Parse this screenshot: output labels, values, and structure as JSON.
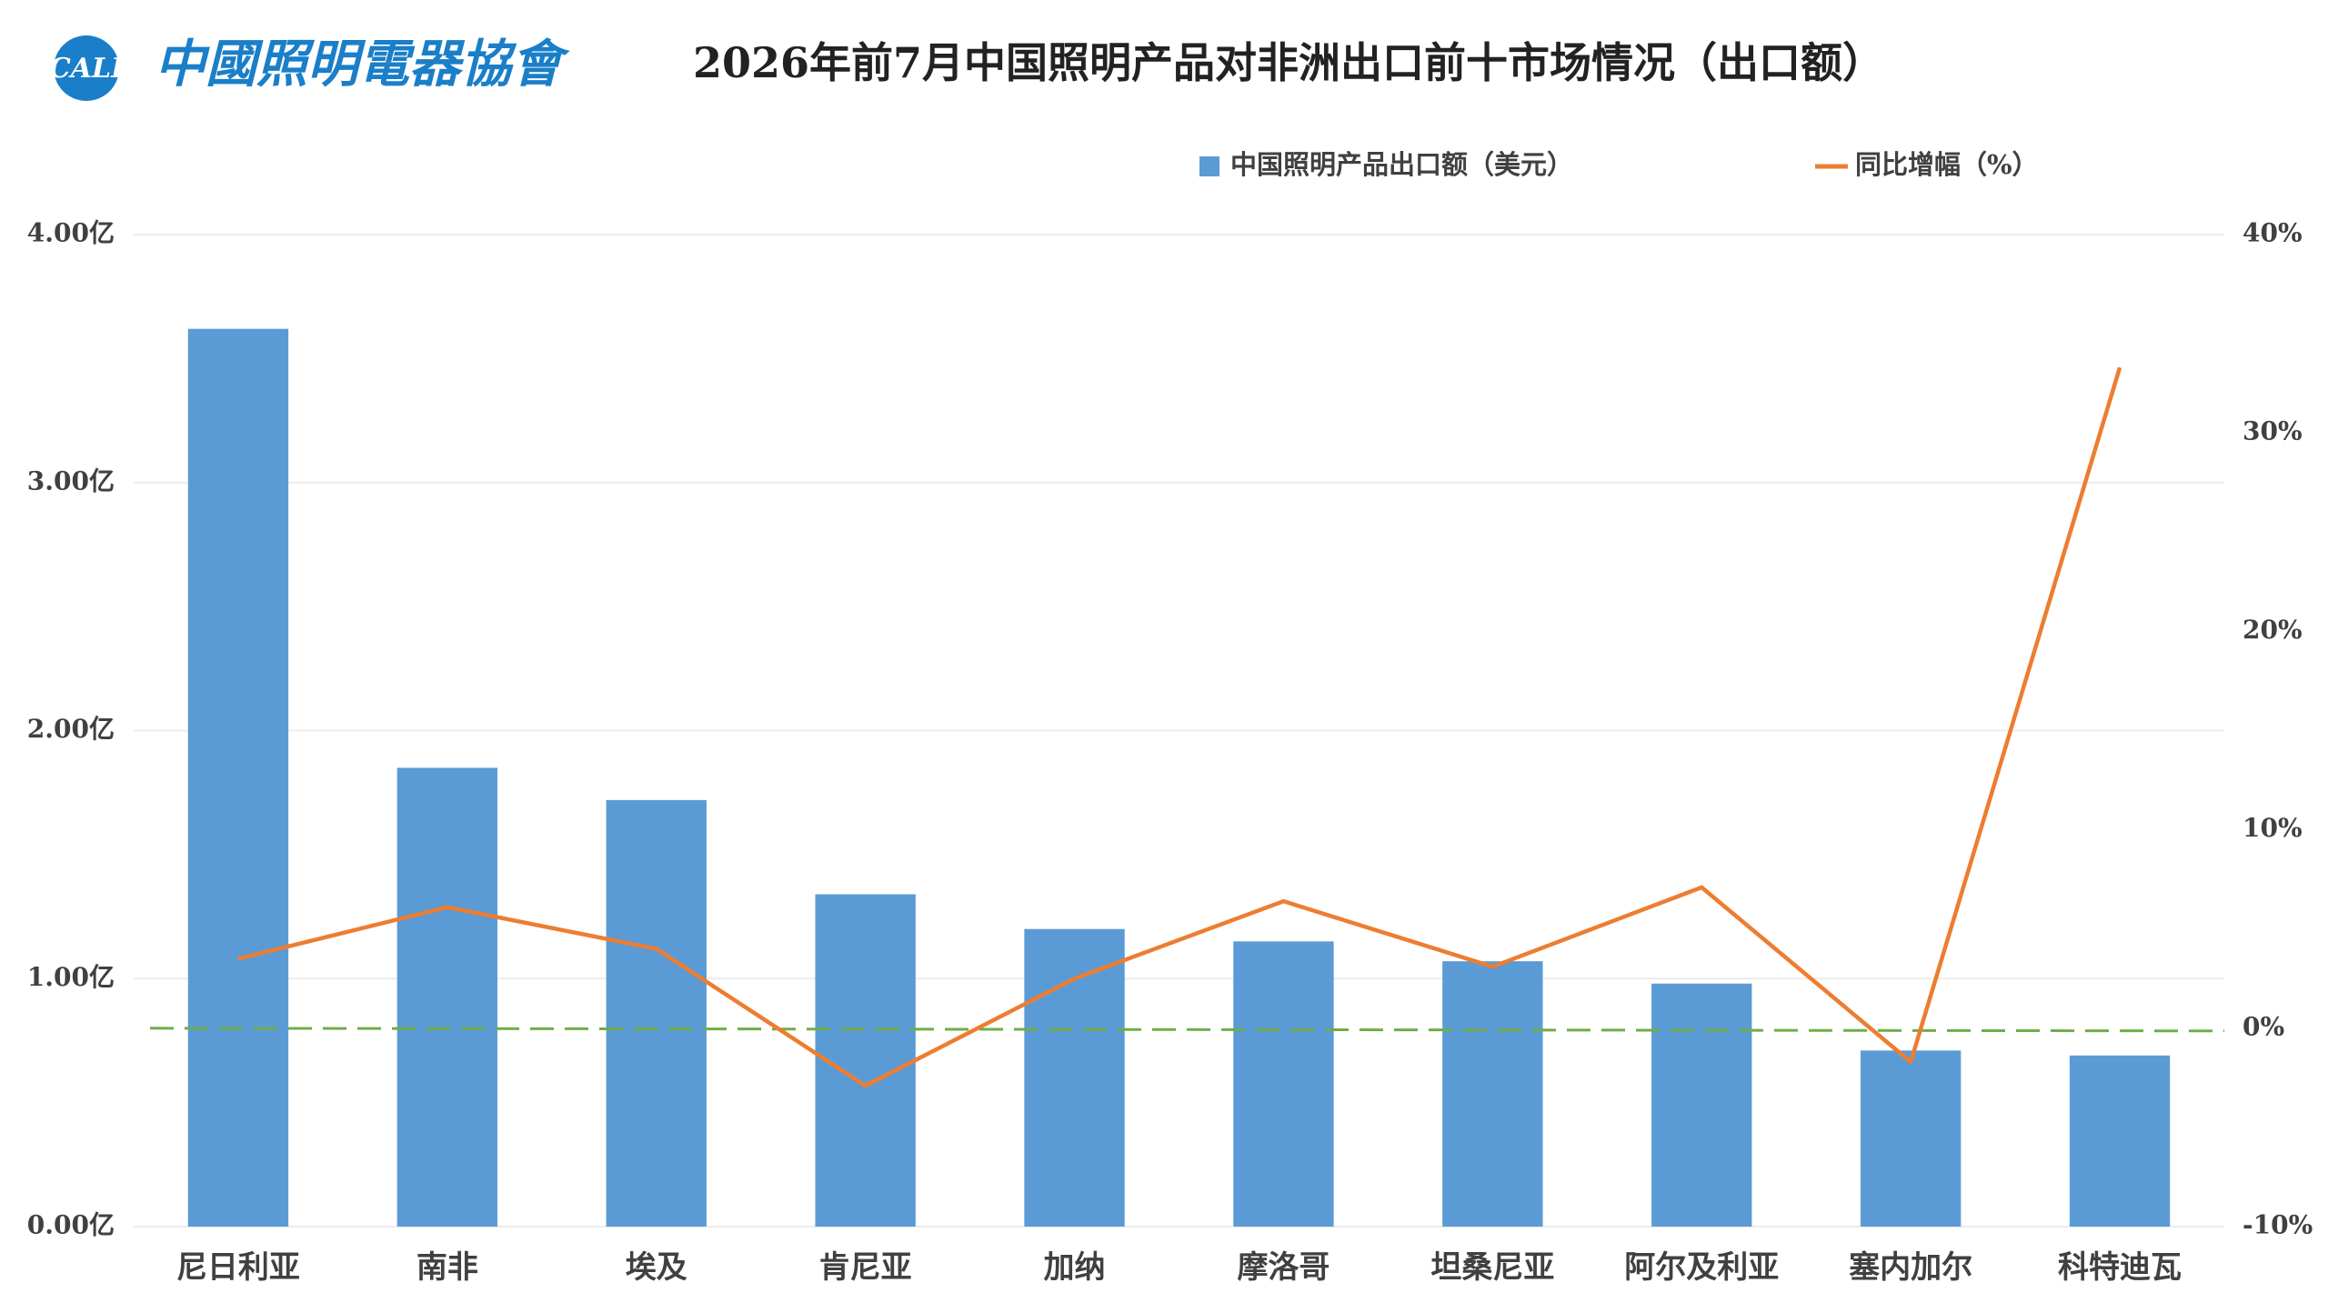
{
  "logo": {
    "mark": "CALI",
    "name": "中國照明電器協會"
  },
  "chart_data": {
    "type": "bar-line",
    "title": "2026年前7月中国照明产品对非洲出口前十市场情况（出口额）",
    "categories": [
      "尼日利亚",
      "南非",
      "埃及",
      "肯尼亚",
      "加纳",
      "摩洛哥",
      "坦桑尼亚",
      "阿尔及利亚",
      "塞内加尔",
      "科特迪瓦"
    ],
    "series": [
      {
        "name": "中国照明产品出口额（美元）",
        "type": "bar",
        "color": "#5b9bd5",
        "values": [
          3.62,
          1.85,
          1.72,
          1.34,
          1.2,
          1.15,
          1.07,
          0.98,
          0.71,
          0.69
        ]
      },
      {
        "name": "同比增幅（%）",
        "type": "line",
        "axis": "y2",
        "color": "#ed7d31",
        "values": [
          3.5,
          6.1,
          4.0,
          -2.9,
          2.5,
          6.4,
          3.1,
          7.1,
          -1.7,
          33.3
        ]
      }
    ],
    "ylim": [
      0,
      4
    ],
    "yticks": [
      {
        "value": 0,
        "label": "0.00亿"
      },
      {
        "value": 1,
        "label": "1.00亿"
      },
      {
        "value": 2,
        "label": "2.00亿"
      },
      {
        "value": 3,
        "label": "3.00亿"
      },
      {
        "value": 4,
        "label": "4.00亿"
      }
    ],
    "y2lim": [
      -10,
      40
    ],
    "y2ticks": [
      {
        "value": -10,
        "label": "-10%"
      },
      {
        "value": 0,
        "label": "0%"
      },
      {
        "value": 10,
        "label": "10%"
      },
      {
        "value": 20,
        "label": "20%"
      },
      {
        "value": 30,
        "label": "30%"
      },
      {
        "value": 40,
        "label": "40%"
      }
    ],
    "grid": true,
    "reference_line_color": "#70ad47"
  }
}
